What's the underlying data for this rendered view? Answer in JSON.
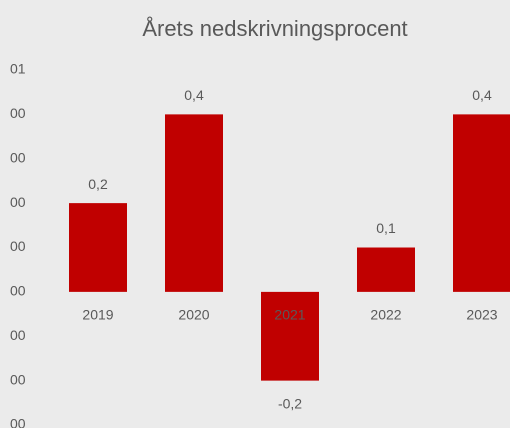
{
  "chart_data": {
    "type": "bar",
    "title": "Årets nedskrivningsprocent",
    "categories": [
      "2019",
      "2020",
      "2021",
      "2022",
      "2023"
    ],
    "values": [
      0.2,
      0.4,
      -0.2,
      0.1,
      0.4
    ],
    "value_labels": [
      "0,2",
      "0,4",
      "-0,2",
      "0,1",
      "0,4"
    ],
    "color": "#c00000",
    "ylim": [
      -0.3,
      0.5
    ],
    "yticks": [
      {
        "value": 0.5,
        "label": "01"
      },
      {
        "value": 0.4,
        "label": "00"
      },
      {
        "value": 0.3,
        "label": "00"
      },
      {
        "value": 0.2,
        "label": "00"
      },
      {
        "value": 0.1,
        "label": "00"
      },
      {
        "value": 0,
        "label": "00"
      },
      {
        "value": -0.1,
        "label": "00"
      },
      {
        "value": -0.2,
        "label": "00"
      },
      {
        "value": -0.3,
        "label": "00"
      }
    ],
    "grid": false
  }
}
